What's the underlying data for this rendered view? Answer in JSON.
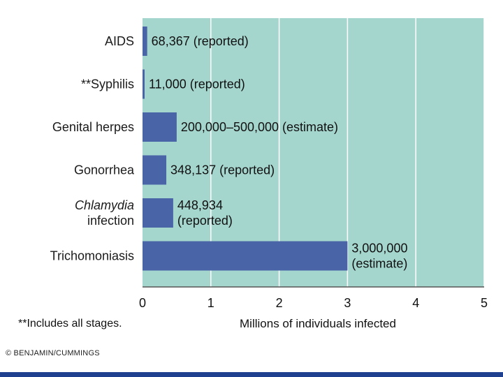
{
  "chart_data": {
    "type": "bar",
    "orientation": "horizontal",
    "categories": [
      [
        "AIDS"
      ],
      [
        "**Syphilis"
      ],
      [
        "Genital herpes"
      ],
      [
        "Gonorrhea"
      ],
      [
        "Chlamydia",
        "infection"
      ],
      [
        "Trichomoniasis"
      ]
    ],
    "category_italic_first_line": [
      false,
      false,
      false,
      false,
      true,
      false
    ],
    "values": [
      0.068367,
      0.011,
      0.5,
      0.348137,
      0.448934,
      3.0
    ],
    "data_labels": [
      [
        "68,367 (reported)"
      ],
      [
        "11,000 (reported)"
      ],
      [
        "200,000–500,000 (estimate)"
      ],
      [
        "348,137 (reported)"
      ],
      [
        "448,934",
        "(reported)"
      ],
      [
        "3,000,000",
        "(estimate)"
      ]
    ],
    "xlabel": "Millions of individuals infected",
    "xlim": [
      0,
      5
    ],
    "xticks": [
      "0",
      "1",
      "2",
      "3",
      "4",
      "5"
    ],
    "grid": true
  },
  "colors": {
    "plot_background": "#a5d6ce",
    "bar": "#4a64a8",
    "gridline": "#ffffff",
    "footer_bar": "#1f3f8f"
  },
  "footnote": "**Includes all stages.",
  "credit": "© BENJAMIN/CUMMINGS"
}
